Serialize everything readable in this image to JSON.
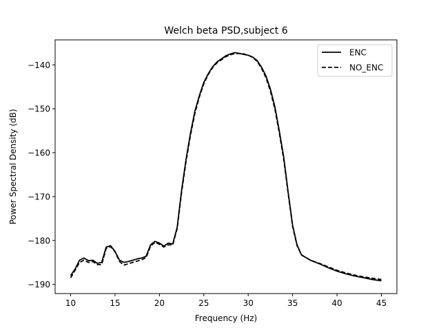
{
  "chart_data": {
    "type": "line",
    "title": "Welch beta PSD,subject 6",
    "xlabel": "Frequency (Hz)",
    "ylabel": "Power Spectral Density (dB)",
    "xlim": [
      8.25,
      46.75
    ],
    "ylim": [
      -192.1,
      -134.3
    ],
    "xticks": [
      10,
      15,
      20,
      25,
      30,
      35,
      40,
      45
    ],
    "yticks": [
      -190,
      -180,
      -170,
      -160,
      -150,
      -140
    ],
    "legend_position": "top-right",
    "grid": false,
    "series": [
      {
        "name": "ENC",
        "color": "#000000",
        "dash": "solid",
        "x": [
          10,
          10.5,
          11,
          11.5,
          12,
          12.5,
          13,
          13.5,
          14,
          14.5,
          15,
          15.5,
          16,
          16.5,
          17,
          17.5,
          18,
          18.5,
          19,
          19.5,
          20,
          20.5,
          21,
          21.5,
          22,
          22.5,
          23,
          23.5,
          24,
          24.5,
          25,
          25.5,
          26,
          26.5,
          27,
          27.5,
          28,
          28.5,
          29,
          29.5,
          30,
          30.5,
          31,
          31.5,
          32,
          32.5,
          33,
          33.5,
          34,
          34.5,
          35,
          35.5,
          36,
          37,
          38,
          39,
          40,
          41,
          42,
          43,
          44,
          45
        ],
        "y": [
          -188,
          -186.5,
          -184.5,
          -184,
          -184.6,
          -184.5,
          -185.2,
          -185,
          -181.5,
          -181.2,
          -182.5,
          -184.5,
          -185,
          -184.8,
          -184.5,
          -184.2,
          -184,
          -183.6,
          -181,
          -180.2,
          -180.6,
          -181.3,
          -180.6,
          -180.8,
          -177,
          -168.5,
          -161.5,
          -155.5,
          -150.5,
          -147,
          -144,
          -142,
          -140.4,
          -139.3,
          -138.6,
          -137.9,
          -137.5,
          -137.2,
          -137.4,
          -137.6,
          -137.8,
          -138.2,
          -139,
          -140.5,
          -142.5,
          -145.5,
          -149.5,
          -155,
          -161,
          -169,
          -176.5,
          -181,
          -183.3,
          -184.5,
          -185.3,
          -186.2,
          -187,
          -187.6,
          -188.1,
          -188.5,
          -188.9,
          -189.2
        ]
      },
      {
        "name": "NO_ENC",
        "color": "#000000",
        "dash": "dashed",
        "x": [
          10,
          10.5,
          11,
          11.5,
          12,
          12.5,
          13,
          13.5,
          14,
          14.5,
          15,
          15.5,
          16,
          16.5,
          17,
          17.5,
          18,
          18.5,
          19,
          19.5,
          20,
          20.5,
          21,
          21.5,
          22,
          22.5,
          23,
          23.5,
          24,
          24.5,
          25,
          25.5,
          26,
          26.5,
          27,
          27.5,
          28,
          28.5,
          29,
          29.5,
          30,
          30.5,
          31,
          31.5,
          32,
          32.5,
          33,
          33.5,
          34,
          34.5,
          35,
          35.5,
          36,
          37,
          38,
          39,
          40,
          41,
          42,
          43,
          44,
          45
        ],
        "y": [
          -188.5,
          -186.8,
          -185,
          -184.5,
          -185,
          -184.8,
          -185.5,
          -185.5,
          -181.8,
          -181.4,
          -182.6,
          -184.8,
          -185.6,
          -185.3,
          -185,
          -184.7,
          -184.4,
          -183.9,
          -181.3,
          -180.4,
          -180.9,
          -181.5,
          -181,
          -181,
          -177.3,
          -169,
          -162,
          -156,
          -151,
          -147.3,
          -144.3,
          -142.2,
          -140.6,
          -139.5,
          -138.8,
          -138.1,
          -137.7,
          -137.4,
          -137.4,
          -137.5,
          -137.8,
          -138.3,
          -139.2,
          -140.8,
          -142.9,
          -146,
          -150,
          -155.5,
          -161.5,
          -169.3,
          -176.8,
          -181.2,
          -183.3,
          -184.5,
          -185.2,
          -186,
          -186.8,
          -187.4,
          -187.9,
          -188.3,
          -188.6,
          -188.9
        ]
      }
    ]
  }
}
